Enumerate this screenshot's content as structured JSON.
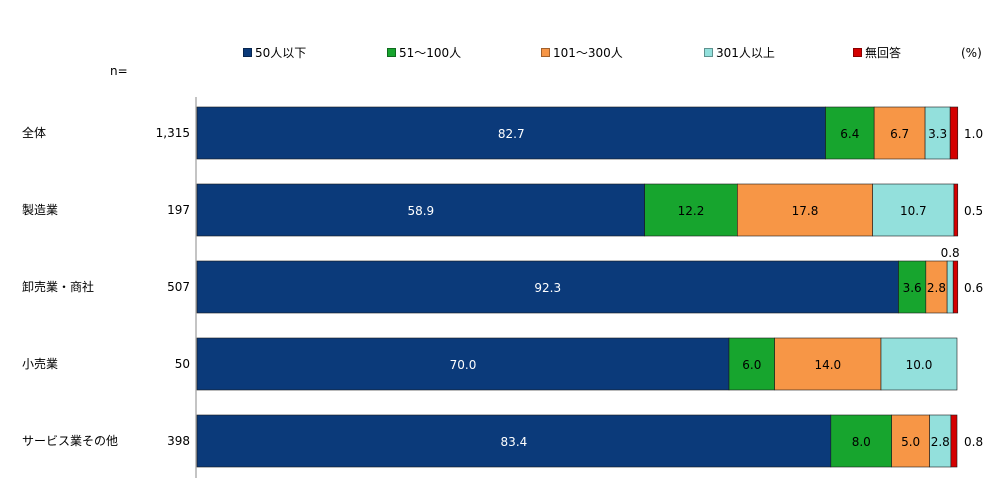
{
  "chart_data": {
    "type": "bar",
    "orientation": "horizontal",
    "stacked": true,
    "percent_stacked": true,
    "unit_label": "(%)",
    "n_label": "n=",
    "categories": [
      "全体",
      "製造業",
      "卸売業・商社",
      "小売業",
      "サービス業その他"
    ],
    "n_values": [
      "1,315",
      "197",
      "507",
      "50",
      "398"
    ],
    "series": [
      {
        "name": "50人以下",
        "color": "#0B3A7A",
        "values": [
          82.7,
          58.9,
          92.3,
          70.0,
          83.4
        ],
        "labels": [
          "82.7",
          "58.9",
          "92.3",
          "70.0",
          "83.4"
        ]
      },
      {
        "name": "51～100人",
        "color": "#17A52E",
        "values": [
          6.4,
          12.2,
          3.6,
          6.0,
          8.0
        ],
        "labels": [
          "6.4",
          "12.2",
          "3.6",
          "6.0",
          "8.0"
        ]
      },
      {
        "name": "101～300人",
        "color": "#F79646",
        "values": [
          6.7,
          17.8,
          2.8,
          14.0,
          5.0
        ],
        "labels": [
          "6.7",
          "17.8",
          "2.8",
          "14.0",
          "5.0"
        ]
      },
      {
        "name": "301人以上",
        "color": "#93E0DC",
        "values": [
          3.3,
          10.7,
          0.8,
          10.0,
          2.8
        ],
        "labels": [
          "3.3",
          "10.7",
          "0.8",
          "10.0",
          "2.8"
        ]
      },
      {
        "name": "無回答",
        "color": "#D40000",
        "values": [
          1.0,
          0.5,
          0.6,
          0.0,
          0.8
        ],
        "labels": [
          "1.0",
          "0.5",
          "0.6",
          "",
          "0.8"
        ]
      }
    ],
    "xlim": [
      0,
      100
    ],
    "grid": false,
    "legend_position": "top"
  }
}
